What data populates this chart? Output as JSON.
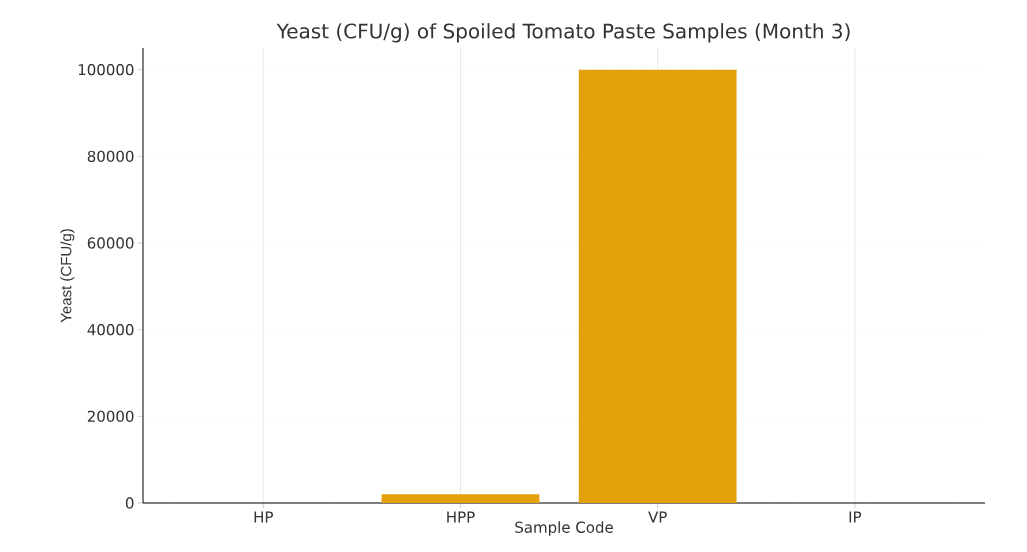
{
  "chart_data": {
    "type": "bar",
    "title": "Yeast (CFU/g) of Spoiled Tomato Paste Samples (Month 3)",
    "xlabel": "Sample Code",
    "ylabel": "Yeast (CFU/g)",
    "categories": [
      "HP",
      "HPP",
      "VP",
      "IP"
    ],
    "values": [
      0,
      2000,
      100000,
      0
    ],
    "color": "#e3a008",
    "ylim": [
      0,
      105000
    ],
    "yticks": [
      0,
      20000,
      40000,
      60000,
      80000,
      100000
    ],
    "grid": true
  }
}
